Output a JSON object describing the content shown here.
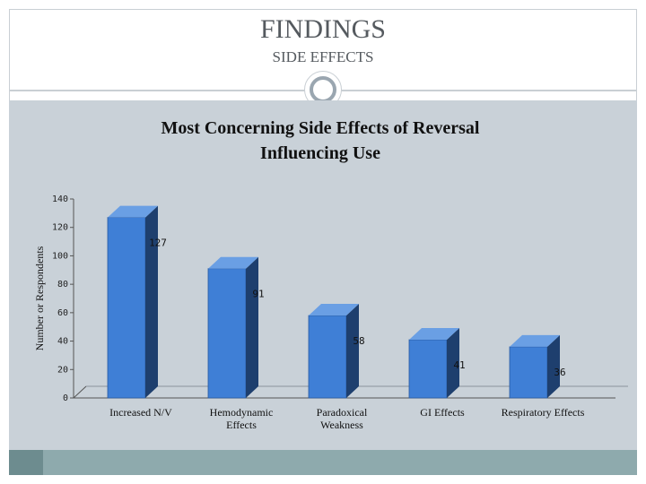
{
  "slide": {
    "title": "FINDINGS",
    "subtitle": "SIDE EFFECTS"
  },
  "colors": {
    "panel": "#c9d1d8",
    "bar_front": "#3f7fd6",
    "bar_side": "#1e3f6e",
    "bar_top": "#6a9fe4",
    "footer": "#8eaaad"
  },
  "chart_data": {
    "type": "bar",
    "title": "Most Concerning Side Effects of Reversal Influencing Use",
    "title_lines": [
      "Most Concerning Side Effects of Reversal",
      "Influencing Use"
    ],
    "ylabel": "Number or Respondents",
    "xlabel": "",
    "categories": [
      "Increased N/V",
      "Hemodynamic Effects",
      "Paradoxical Weakness",
      "GI Effects",
      "Respiratory Effects"
    ],
    "category_lines": [
      [
        "Increased N/V"
      ],
      [
        "Hemodynamic",
        "Effects"
      ],
      [
        "Paradoxical",
        "Weakness"
      ],
      [
        "GI Effects"
      ],
      [
        "Respiratory Effects"
      ]
    ],
    "values": [
      127,
      91,
      58,
      41,
      36
    ],
    "ylim": [
      0,
      140
    ],
    "yticks": [
      0,
      20,
      40,
      60,
      80,
      100,
      120,
      140
    ],
    "grid": false,
    "legend": "none",
    "style": "3d-column"
  }
}
